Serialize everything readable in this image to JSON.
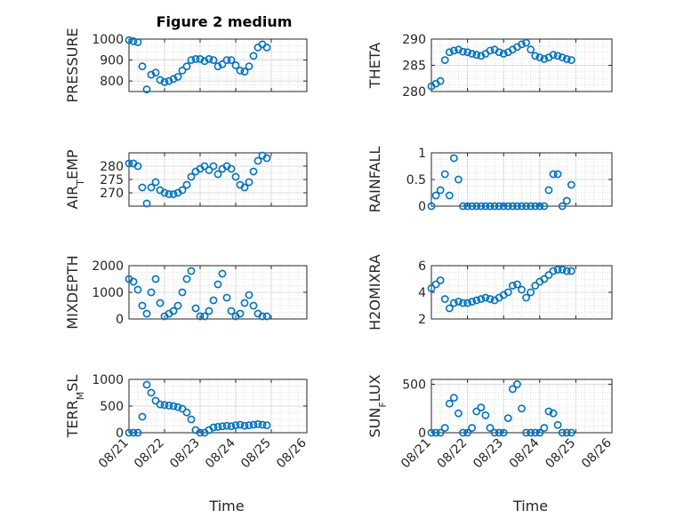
{
  "figure": {
    "title": "Figure 2 medium"
  },
  "chart_data": [
    {
      "type": "scatter",
      "title": "Figure 2 medium",
      "ylabel": "PRESSURE",
      "ylim": [
        750,
        1000
      ],
      "yticks": [
        800,
        900,
        1000
      ],
      "xlabel": "",
      "grid": true,
      "x": [
        "08/21 00:00",
        "08/21 03:00",
        "08/21 06:00",
        "08/21 09:00",
        "08/21 12:00",
        "08/21 15:00",
        "08/21 18:00",
        "08/21 21:00",
        "08/22 00:00",
        "08/22 03:00",
        "08/22 06:00",
        "08/22 09:00",
        "08/22 12:00",
        "08/22 15:00",
        "08/22 18:00",
        "08/22 21:00",
        "08/23 00:00",
        "08/23 03:00",
        "08/23 06:00",
        "08/23 09:00",
        "08/23 12:00",
        "08/23 15:00",
        "08/23 18:00",
        "08/23 21:00",
        "08/24 00:00",
        "08/24 03:00",
        "08/24 06:00",
        "08/24 09:00",
        "08/24 12:00",
        "08/24 15:00",
        "08/24 18:00",
        "08/24 21:00"
      ],
      "y": [
        995,
        990,
        985,
        870,
        760,
        830,
        840,
        805,
        795,
        800,
        810,
        820,
        850,
        870,
        900,
        905,
        905,
        895,
        905,
        900,
        870,
        880,
        900,
        900,
        875,
        850,
        845,
        870,
        920,
        960,
        975,
        960
      ]
    },
    {
      "type": "scatter",
      "ylabel": "THETA",
      "ylim": [
        280,
        290
      ],
      "yticks": [
        280,
        285,
        290
      ],
      "grid": true,
      "x": [
        "08/21 00:00",
        "08/21 03:00",
        "08/21 06:00",
        "08/21 09:00",
        "08/21 12:00",
        "08/21 15:00",
        "08/21 18:00",
        "08/21 21:00",
        "08/22 00:00",
        "08/22 03:00",
        "08/22 06:00",
        "08/22 09:00",
        "08/22 12:00",
        "08/22 15:00",
        "08/22 18:00",
        "08/22 21:00",
        "08/23 00:00",
        "08/23 03:00",
        "08/23 06:00",
        "08/23 09:00",
        "08/23 12:00",
        "08/23 15:00",
        "08/23 18:00",
        "08/23 21:00",
        "08/24 00:00",
        "08/24 03:00",
        "08/24 06:00",
        "08/24 09:00",
        "08/24 12:00",
        "08/24 15:00",
        "08/24 18:00",
        "08/24 21:00"
      ],
      "y": [
        281,
        281.5,
        282,
        286,
        287.5,
        287.8,
        288,
        287.6,
        287.5,
        287.2,
        287,
        286.8,
        287.2,
        287.8,
        288,
        287.5,
        287.2,
        287.5,
        288,
        288.5,
        289,
        289.3,
        288,
        286.8,
        286.5,
        286.2,
        286.5,
        287,
        286.8,
        286.5,
        286.2,
        286
      ]
    },
    {
      "type": "scatter",
      "ylabel_main": "AIR",
      "ylabel_sub": "T",
      "ylabel_rest": "EMP",
      "ylim": [
        265,
        285
      ],
      "yticks": [
        270,
        275,
        280
      ],
      "grid": true,
      "x": [
        "08/21 00:00",
        "08/21 03:00",
        "08/21 06:00",
        "08/21 09:00",
        "08/21 12:00",
        "08/21 15:00",
        "08/21 18:00",
        "08/21 21:00",
        "08/22 00:00",
        "08/22 03:00",
        "08/22 06:00",
        "08/22 09:00",
        "08/22 12:00",
        "08/22 15:00",
        "08/22 18:00",
        "08/22 21:00",
        "08/23 00:00",
        "08/23 03:00",
        "08/23 06:00",
        "08/23 09:00",
        "08/23 12:00",
        "08/23 15:00",
        "08/23 18:00",
        "08/23 21:00",
        "08/24 00:00",
        "08/24 03:00",
        "08/24 06:00",
        "08/24 09:00",
        "08/24 12:00",
        "08/24 15:00",
        "08/24 18:00",
        "08/24 21:00"
      ],
      "y": [
        281,
        281,
        280,
        272,
        266,
        272,
        274,
        271,
        270,
        269.5,
        269.5,
        270,
        271,
        273,
        276,
        278,
        279,
        280,
        278.5,
        280,
        277,
        279,
        280,
        279,
        276,
        273,
        272,
        274,
        278,
        282,
        284,
        283
      ]
    },
    {
      "type": "scatter",
      "ylabel": "RAINFALL",
      "ylim": [
        0,
        1
      ],
      "yticks": [
        0,
        0.5,
        1
      ],
      "grid": true,
      "x": [
        "08/21 00:00",
        "08/21 03:00",
        "08/21 06:00",
        "08/21 09:00",
        "08/21 12:00",
        "08/21 15:00",
        "08/21 18:00",
        "08/21 21:00",
        "08/22 00:00",
        "08/22 03:00",
        "08/22 06:00",
        "08/22 09:00",
        "08/22 12:00",
        "08/22 15:00",
        "08/22 18:00",
        "08/22 21:00",
        "08/23 00:00",
        "08/23 03:00",
        "08/23 06:00",
        "08/23 09:00",
        "08/23 12:00",
        "08/23 15:00",
        "08/23 18:00",
        "08/23 21:00",
        "08/24 00:00",
        "08/24 03:00",
        "08/24 06:00",
        "08/24 09:00",
        "08/24 12:00",
        "08/24 15:00",
        "08/24 18:00",
        "08/24 21:00"
      ],
      "y": [
        0,
        0.2,
        0.3,
        0.6,
        0.2,
        0.9,
        0.5,
        0,
        0,
        0,
        0,
        0,
        0,
        0,
        0,
        0,
        0,
        0,
        0,
        0,
        0,
        0,
        0,
        0,
        0,
        0,
        0.3,
        0.6,
        0.6,
        0,
        0.1,
        0.4
      ]
    },
    {
      "type": "scatter",
      "ylabel": "MIXDEPTH",
      "ylim": [
        0,
        2000
      ],
      "yticks": [
        0,
        1000,
        2000
      ],
      "grid": true,
      "x": [
        "08/21 00:00",
        "08/21 03:00",
        "08/21 06:00",
        "08/21 09:00",
        "08/21 12:00",
        "08/21 15:00",
        "08/21 18:00",
        "08/21 21:00",
        "08/22 00:00",
        "08/22 03:00",
        "08/22 06:00",
        "08/22 09:00",
        "08/22 12:00",
        "08/22 15:00",
        "08/22 18:00",
        "08/22 21:00",
        "08/23 00:00",
        "08/23 03:00",
        "08/23 06:00",
        "08/23 09:00",
        "08/23 12:00",
        "08/23 15:00",
        "08/23 18:00",
        "08/23 21:00",
        "08/24 00:00",
        "08/24 03:00",
        "08/24 06:00",
        "08/24 09:00",
        "08/24 12:00",
        "08/24 15:00",
        "08/24 18:00",
        "08/24 21:00"
      ],
      "y": [
        1500,
        1400,
        1100,
        500,
        200,
        1000,
        1500,
        600,
        100,
        200,
        300,
        500,
        1000,
        1500,
        1800,
        400,
        100,
        100,
        300,
        700,
        1300,
        1700,
        800,
        300,
        100,
        200,
        600,
        900,
        500,
        200,
        100,
        100
      ]
    },
    {
      "type": "scatter",
      "ylabel": "H2OMIXRA",
      "ylim": [
        2,
        6
      ],
      "yticks": [
        2,
        4,
        6
      ],
      "grid": true,
      "x": [
        "08/21 00:00",
        "08/21 03:00",
        "08/21 06:00",
        "08/21 09:00",
        "08/21 12:00",
        "08/21 15:00",
        "08/21 18:00",
        "08/21 21:00",
        "08/22 00:00",
        "08/22 03:00",
        "08/22 06:00",
        "08/22 09:00",
        "08/22 12:00",
        "08/22 15:00",
        "08/22 18:00",
        "08/22 21:00",
        "08/23 00:00",
        "08/23 03:00",
        "08/23 06:00",
        "08/23 09:00",
        "08/23 12:00",
        "08/23 15:00",
        "08/23 18:00",
        "08/23 21:00",
        "08/24 00:00",
        "08/24 03:00",
        "08/24 06:00",
        "08/24 09:00",
        "08/24 12:00",
        "08/24 15:00",
        "08/24 18:00",
        "08/24 21:00"
      ],
      "y": [
        4.3,
        4.6,
        4.9,
        3.5,
        2.8,
        3.2,
        3.3,
        3.2,
        3.2,
        3.3,
        3.4,
        3.5,
        3.6,
        3.5,
        3.4,
        3.6,
        3.8,
        4.0,
        4.5,
        4.6,
        4.2,
        3.6,
        4.0,
        4.5,
        4.8,
        5.0,
        5.3,
        5.6,
        5.7,
        5.7,
        5.6,
        5.6
      ]
    },
    {
      "type": "scatter",
      "ylabel_main": "TERR",
      "ylabel_sub": "M",
      "ylabel_rest": "SL",
      "ylim": [
        0,
        1000
      ],
      "yticks": [
        0,
        500,
        1000
      ],
      "grid": true,
      "xlabel": "Time",
      "xticks": [
        "08/21",
        "08/22",
        "08/23",
        "08/24",
        "08/25",
        "08/26"
      ],
      "x": [
        "08/21 00:00",
        "08/21 03:00",
        "08/21 06:00",
        "08/21 09:00",
        "08/21 12:00",
        "08/21 15:00",
        "08/21 18:00",
        "08/21 21:00",
        "08/22 00:00",
        "08/22 03:00",
        "08/22 06:00",
        "08/22 09:00",
        "08/22 12:00",
        "08/22 15:00",
        "08/22 18:00",
        "08/22 21:00",
        "08/23 00:00",
        "08/23 03:00",
        "08/23 06:00",
        "08/23 09:00",
        "08/23 12:00",
        "08/23 15:00",
        "08/23 18:00",
        "08/23 21:00",
        "08/24 00:00",
        "08/24 03:00",
        "08/24 06:00",
        "08/24 09:00",
        "08/24 12:00",
        "08/24 15:00",
        "08/24 18:00",
        "08/24 21:00"
      ],
      "y": [
        0,
        0,
        0,
        300,
        900,
        750,
        600,
        530,
        520,
        510,
        500,
        480,
        450,
        380,
        250,
        50,
        0,
        0,
        50,
        100,
        110,
        120,
        130,
        120,
        140,
        150,
        130,
        140,
        150,
        160,
        150,
        140
      ]
    },
    {
      "type": "scatter",
      "ylabel_main": "SUN",
      "ylabel_sub": "F",
      "ylabel_rest": "LUX",
      "ylim": [
        0,
        550
      ],
      "yticks": [
        0,
        500
      ],
      "grid": true,
      "xlabel": "Time",
      "xticks": [
        "08/21",
        "08/22",
        "08/23",
        "08/24",
        "08/25",
        "08/26"
      ],
      "x": [
        "08/21 00:00",
        "08/21 03:00",
        "08/21 06:00",
        "08/21 09:00",
        "08/21 12:00",
        "08/21 15:00",
        "08/21 18:00",
        "08/21 21:00",
        "08/22 00:00",
        "08/22 03:00",
        "08/22 06:00",
        "08/22 09:00",
        "08/22 12:00",
        "08/22 15:00",
        "08/22 18:00",
        "08/22 21:00",
        "08/23 00:00",
        "08/23 03:00",
        "08/23 06:00",
        "08/23 09:00",
        "08/23 12:00",
        "08/23 15:00",
        "08/23 18:00",
        "08/23 21:00",
        "08/24 00:00",
        "08/24 03:00",
        "08/24 06:00",
        "08/24 09:00",
        "08/24 12:00",
        "08/24 15:00",
        "08/24 18:00",
        "08/24 21:00"
      ],
      "y": [
        0,
        0,
        0,
        50,
        300,
        360,
        200,
        0,
        0,
        50,
        220,
        260,
        180,
        50,
        0,
        0,
        0,
        150,
        450,
        500,
        250,
        0,
        0,
        0,
        0,
        50,
        220,
        200,
        80,
        0,
        0,
        0
      ]
    }
  ],
  "colors": {
    "marker": "#0072BD",
    "axis": "#262626",
    "grid": "#dcdcdc"
  }
}
